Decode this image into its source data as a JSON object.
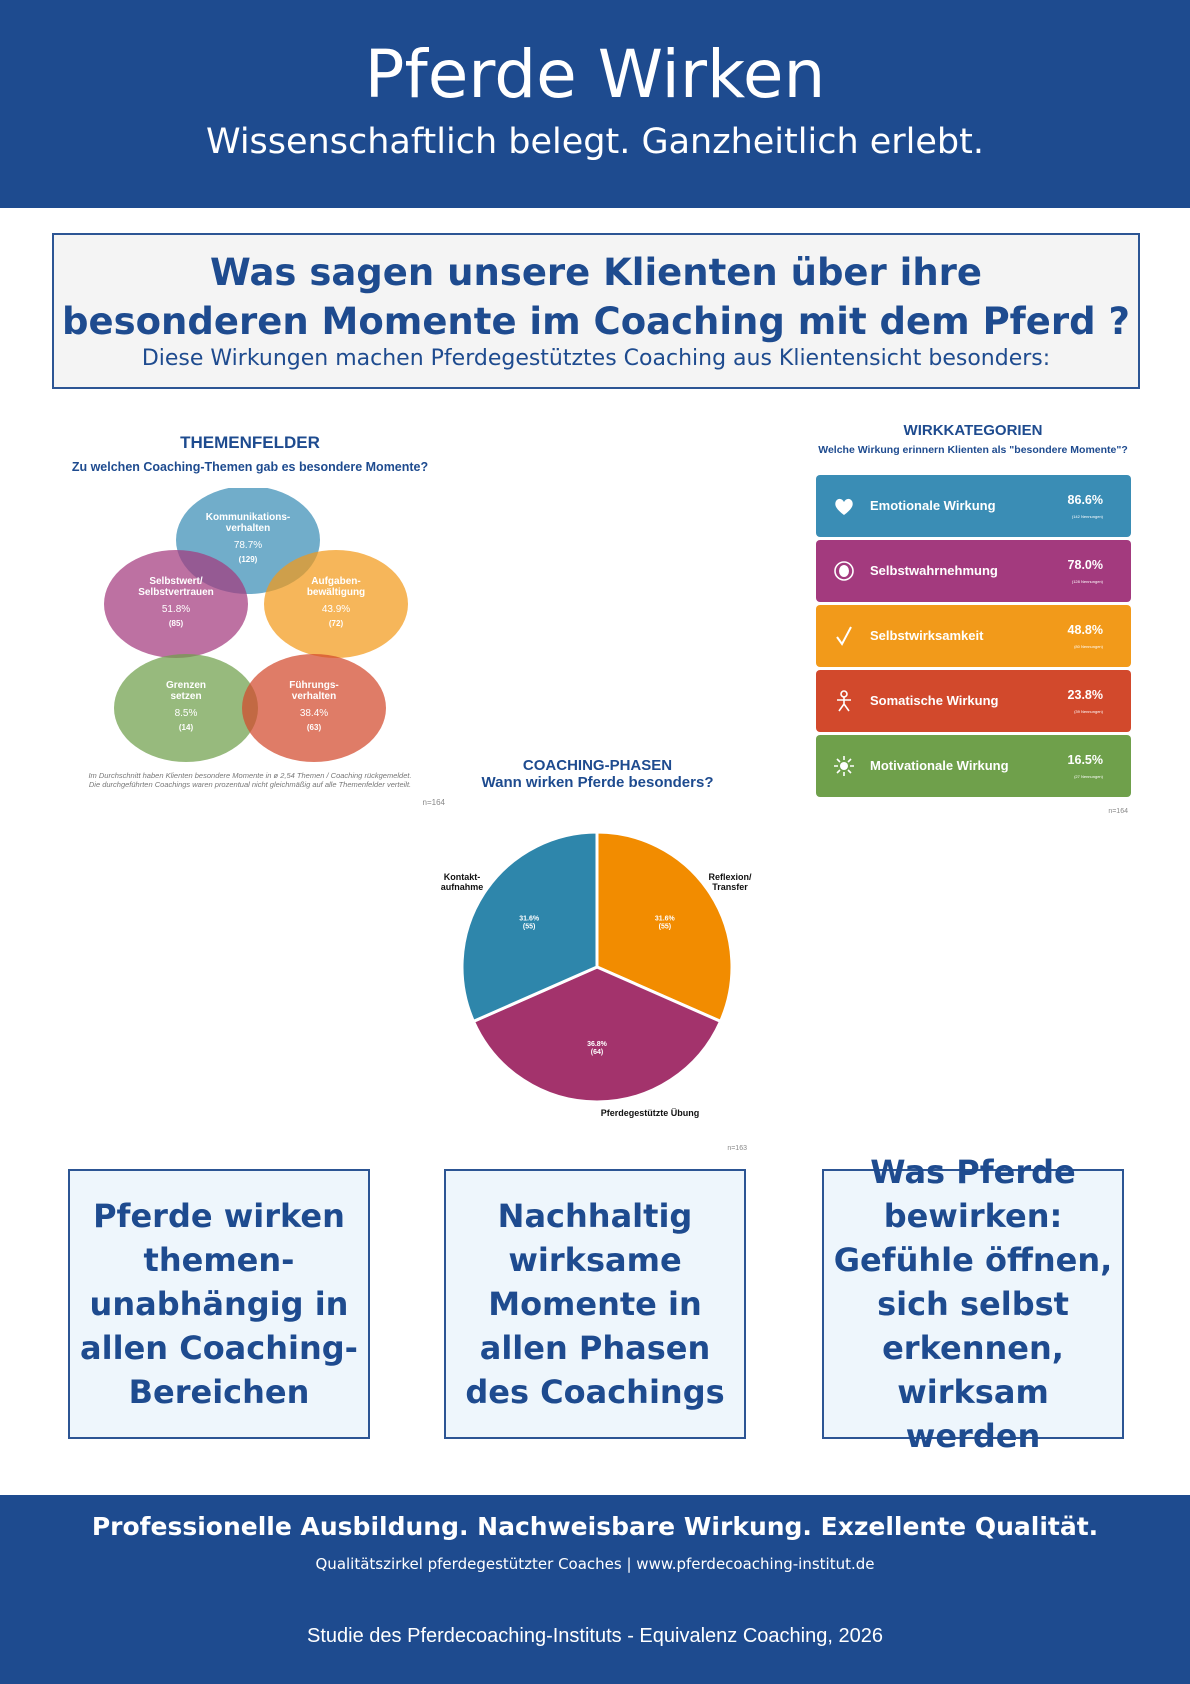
{
  "header": {
    "title": "Pferde Wirken",
    "subtitle": "Wissenschaftlich belegt. Ganzheitlich erlebt."
  },
  "question": {
    "line1": "Was sagen unsere Klienten über ihre",
    "line2": "besonderen Momente im Coaching mit dem Pferd ?",
    "line3": "Diese Wirkungen machen Pferdegestütztes Coaching aus Klientensicht besonders:"
  },
  "themenfelder": {
    "title": "THEMENFELDER",
    "subtitle": "Zu welchen Coaching-Themen gab es besondere Momente?",
    "note_line1": "Im Durchschnitt haben Klienten besondere Momente in ø 2,54 Themen / Coaching rückgemeldet.",
    "note_line2": "Die durchgeführten Coachings waren prozentual nicht gleichmäßig auf alle Themenfelder verteilt.",
    "n": "n=164"
  },
  "wirkkategorien": {
    "title": "WIRKKATEGORIEN",
    "subtitle": "Welche Wirkung erinnern Klienten als \"besondere Momente\"?",
    "n": "n=164"
  },
  "coaching_phasen": {
    "title": "COACHING-PHASEN",
    "subtitle": "Wann wirken Pferde besonders?",
    "n": "n=163"
  },
  "chart_data": [
    {
      "type": "venn",
      "title": "THEMENFELDER",
      "subtitle": "Zu welchen Coaching-Themen gab es besondere Momente?",
      "sets": [
        {
          "line1": "Kommunikations-",
          "line2": "verhalten",
          "pct": "78.7%",
          "count": "(129)",
          "value": 78.7,
          "n": 129,
          "color": "#3a8db5"
        },
        {
          "line1": "Selbstwert/",
          "line2": "Selbstvertrauen",
          "pct": "51.8%",
          "count": "(85)",
          "value": 51.8,
          "n": 85,
          "color": "#a33a7e"
        },
        {
          "line1": "Aufgaben-",
          "line2": "bewältigung",
          "pct": "43.9%",
          "count": "(72)",
          "value": 43.9,
          "n": 72,
          "color": "#f29a1a"
        },
        {
          "line1": "Grenzen",
          "line2": "setzen",
          "pct": "8.5%",
          "count": "(14)",
          "value": 8.5,
          "n": 14,
          "color": "#6fa04b"
        },
        {
          "line1": "Führungs-",
          "line2": "verhalten",
          "pct": "38.4%",
          "count": "(63)",
          "value": 38.4,
          "n": 63,
          "color": "#d2492c"
        }
      ]
    },
    {
      "type": "table",
      "title": "WIRKKATEGORIEN",
      "subtitle": "Welche Wirkung erinnern Klienten als \"besondere Momente\"?",
      "rows": [
        {
          "label": "Emotionale Wirkung",
          "pct": "86.6%",
          "count": "(142 Nennungen)",
          "value": 86.6,
          "n": 142,
          "icon": "heart-icon",
          "color": "#3a8db5"
        },
        {
          "label": "Selbstwahrnehmung",
          "pct": "78.0%",
          "count": "(128 Nennungen)",
          "value": 78.0,
          "n": 128,
          "icon": "eye-icon",
          "color": "#a33a7e"
        },
        {
          "label": "Selbstwirksamkeit",
          "pct": "48.8%",
          "count": "(80 Nennungen)",
          "value": 48.8,
          "n": 80,
          "icon": "checkmark-icon",
          "color": "#f29a1a"
        },
        {
          "label": "Somatische Wirkung",
          "pct": "23.8%",
          "count": "(39 Nennungen)",
          "value": 23.8,
          "n": 39,
          "icon": "person-icon",
          "color": "#d2492c"
        },
        {
          "label": "Motivationale Wirkung",
          "pct": "16.5%",
          "count": "(27 Nennungen)",
          "value": 16.5,
          "n": 27,
          "icon": "sun-icon",
          "color": "#6fa04b"
        }
      ]
    },
    {
      "type": "pie",
      "title": "COACHING-PHASEN",
      "subtitle": "Wann wirken Pferde besonders?",
      "slices": [
        {
          "label_lines": [
            "Reflexion/",
            "Transfer"
          ],
          "pct": "31.6%",
          "count": "(55)",
          "value": 31.6,
          "n": 55,
          "color": "#f28c00"
        },
        {
          "label_lines": [
            "Pferdegestützte Übung"
          ],
          "pct": "36.8%",
          "count": "(64)",
          "value": 36.8,
          "n": 64,
          "color": "#a3336c"
        },
        {
          "label_lines": [
            "Kontakt-",
            "aufnahme"
          ],
          "pct": "31.6%",
          "count": "(55)",
          "value": 31.6,
          "n": 55,
          "color": "#2e86ab"
        }
      ]
    }
  ],
  "boxes": [
    "Pferde wirken themen-unabhängig in allen Coaching-Bereichen",
    "Nachhaltig wirksame Momente in allen Phasen des Coachings",
    "Was Pferde bewirken: Gefühle öffnen, sich selbst erkennen, wirksam werden"
  ],
  "footer": {
    "line1": "Professionelle Ausbildung. Nachweisbare Wirkung. Exzellente Qualität.",
    "line2": "Qualitätszirkel pferdegestützter Coaches | www.pferdecoaching-institut.de",
    "line3": "Studie des Pferdecoaching-Instituts  - Equivalenz Coaching, 2026"
  }
}
